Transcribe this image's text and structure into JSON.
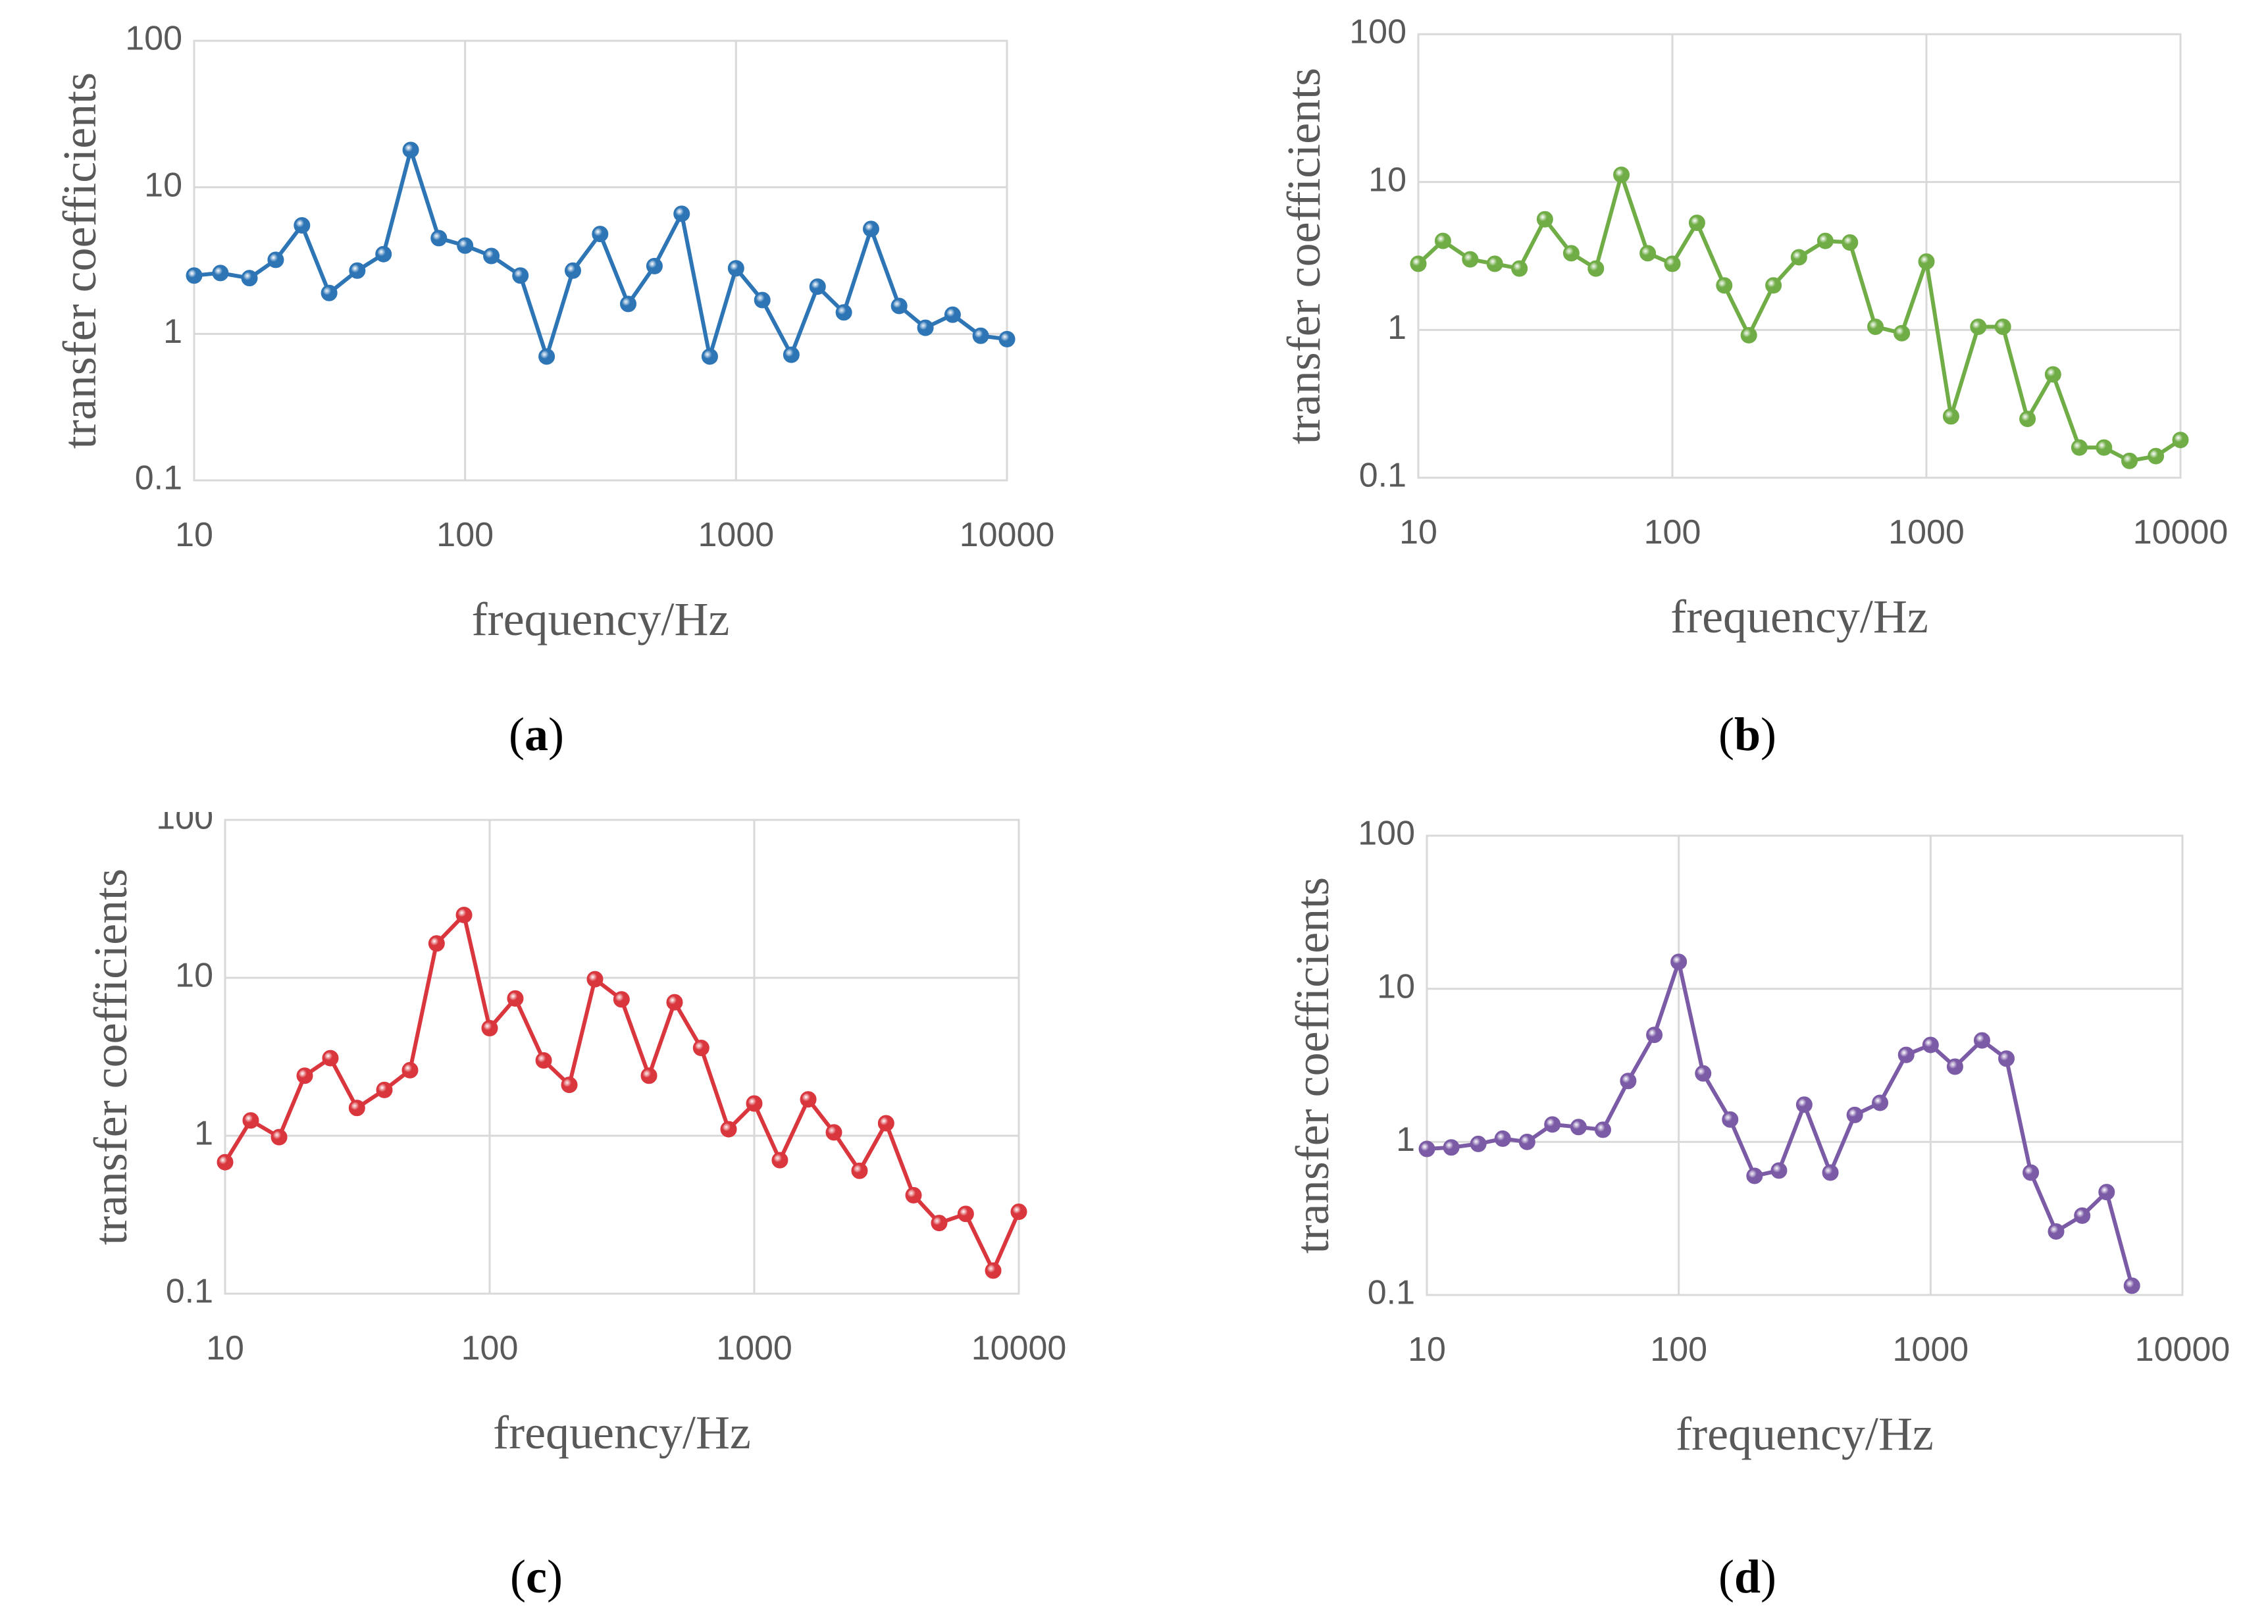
{
  "chart_data": [
    {
      "type": "line",
      "panel_label": "a",
      "caption": "(a)",
      "color": "#2E75B6",
      "xlabel": "frequency/Hz",
      "ylabel": "transfer coefficients",
      "xscale": "log",
      "yscale": "log",
      "xlim": [
        10,
        10000
      ],
      "ylim": [
        0.1,
        100
      ],
      "xticks": [
        "10",
        "100",
        "1000",
        "10000"
      ],
      "yticks": [
        "0.1",
        "1",
        "10",
        "100"
      ],
      "grid": true,
      "x": [
        10,
        12.5,
        16,
        20,
        25,
        31.5,
        40,
        50,
        63,
        80,
        100,
        125,
        160,
        200,
        250,
        315,
        400,
        500,
        630,
        800,
        1000,
        1250,
        1600,
        2000,
        2500,
        3150,
        4000,
        5000,
        6300,
        8000,
        10000
      ],
      "y": [
        2.5,
        2.6,
        2.4,
        3.2,
        5.5,
        1.9,
        2.7,
        3.5,
        18,
        4.5,
        4.0,
        3.4,
        2.5,
        0.7,
        2.7,
        4.8,
        1.6,
        2.9,
        6.6,
        0.7,
        2.8,
        1.7,
        0.72,
        2.1,
        1.4,
        5.2,
        1.55,
        1.1,
        1.35,
        0.97,
        0.92
      ]
    },
    {
      "type": "line",
      "panel_label": "b",
      "caption": "(b)",
      "color": "#70AD47",
      "xlabel": "frequency/Hz",
      "ylabel": "transfer coefficients",
      "xscale": "log",
      "yscale": "log",
      "xlim": [
        10,
        10000
      ],
      "ylim": [
        0.1,
        100
      ],
      "xticks": [
        "10",
        "100",
        "1000",
        "10000"
      ],
      "yticks": [
        "0.1",
        "1",
        "10",
        "100"
      ],
      "grid": true,
      "x": [
        10,
        12.5,
        16,
        20,
        25,
        31.5,
        40,
        50,
        63,
        80,
        100,
        125,
        160,
        200,
        250,
        315,
        400,
        500,
        630,
        800,
        1000,
        1250,
        1600,
        2000,
        2500,
        3150,
        4000,
        5000,
        6300,
        8000,
        10000
      ],
      "y": [
        2.8,
        4.0,
        3.0,
        2.8,
        2.6,
        5.6,
        3.3,
        2.6,
        11.2,
        3.3,
        2.8,
        5.3,
        2.0,
        0.92,
        2.0,
        3.1,
        4.0,
        3.9,
        1.05,
        0.95,
        2.9,
        0.26,
        1.05,
        1.05,
        0.25,
        0.5,
        0.16,
        0.16,
        0.13,
        0.14,
        0.18
      ]
    },
    {
      "type": "line",
      "panel_label": "c",
      "caption": "(c)",
      "color": "#D9363E",
      "xlabel": "frequency/Hz",
      "ylabel": "transfer coefficients",
      "xscale": "log",
      "yscale": "log",
      "xlim": [
        10,
        10000
      ],
      "ylim": [
        0.1,
        100
      ],
      "xticks": [
        "10",
        "100",
        "1000",
        "10000"
      ],
      "yticks": [
        "0.1",
        "1",
        "10",
        "100"
      ],
      "grid": true,
      "x": [
        10,
        12.5,
        16,
        20,
        25,
        31.5,
        40,
        50,
        63,
        80,
        100,
        125,
        160,
        200,
        250,
        315,
        400,
        500,
        630,
        800,
        1000,
        1250,
        1600,
        2000,
        2500,
        3150,
        4000,
        5000,
        6300,
        8000,
        10000
      ],
      "y": [
        0.68,
        1.25,
        0.98,
        2.4,
        3.1,
        1.5,
        1.95,
        2.6,
        16.5,
        25,
        4.8,
        7.4,
        3.0,
        2.1,
        9.8,
        7.3,
        2.4,
        7.0,
        3.6,
        1.1,
        1.6,
        0.7,
        1.7,
        1.05,
        0.6,
        1.2,
        0.42,
        0.28,
        0.32,
        0.14,
        0.33
      ]
    },
    {
      "type": "line",
      "panel_label": "d",
      "caption": "(d)",
      "color": "#7B5AA6",
      "xlabel": "frequency/Hz",
      "ylabel": "transfer coefficients",
      "xscale": "log",
      "yscale": "log",
      "xlim": [
        10,
        10000
      ],
      "ylim": [
        0.1,
        100
      ],
      "xticks": [
        "10",
        "100",
        "1000",
        "10000"
      ],
      "yticks": [
        "0.1",
        "1",
        "10",
        "100"
      ],
      "grid": true,
      "x": [
        10,
        12.5,
        16,
        20,
        25,
        31.5,
        40,
        50,
        63,
        80,
        100,
        125,
        160,
        200,
        250,
        315,
        400,
        500,
        630,
        800,
        1000,
        1250,
        1600,
        2000,
        2500,
        3150,
        4000,
        5000,
        6300
      ],
      "y": [
        0.9,
        0.92,
        0.97,
        1.05,
        1.0,
        1.3,
        1.25,
        1.2,
        2.5,
        5.0,
        15.0,
        2.8,
        1.4,
        0.6,
        0.65,
        1.75,
        0.63,
        1.5,
        1.8,
        3.7,
        4.3,
        3.1,
        4.6,
        3.5,
        0.63,
        0.26,
        0.33,
        0.47,
        0.115
      ]
    }
  ]
}
